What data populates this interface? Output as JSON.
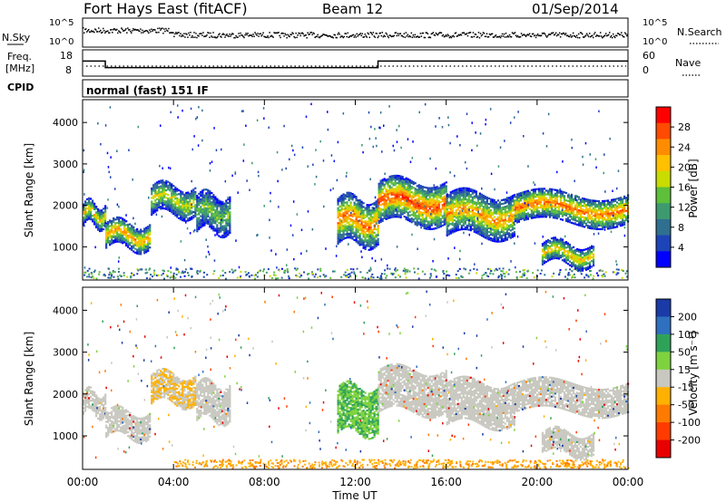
{
  "header": {
    "station": "Fort Hays East (fitACF)",
    "beam": "Beam 12",
    "date": "01/Sep/2014"
  },
  "strips": {
    "nsky_label": "N.Sky",
    "nsearch_label": "N.Search",
    "noise_ticks": [
      "10^5",
      "10^0"
    ],
    "freq_label_line1": "Freq.",
    "freq_label_line2": "[MHz]",
    "freq_ticks": [
      "18",
      "8"
    ],
    "nave_label": "Nave",
    "nave_ticks": [
      "60",
      "0"
    ],
    "cpid_label": "CPID",
    "cpid_text": "normal (fast) 151 IF"
  },
  "time_axis": {
    "label": "Time UT",
    "ticks": [
      "00:00",
      "04:00",
      "08:00",
      "12:00",
      "16:00",
      "20:00",
      "00:00"
    ]
  },
  "chart_data": [
    {
      "type": "heatmap",
      "panel": "power",
      "xlabel": "Time UT",
      "ylabel": "Slant Range [km]",
      "xlim_hours": [
        0,
        24
      ],
      "ylim": [
        200,
        4550
      ],
      "yticks": [
        "4000",
        "3000",
        "2000",
        "1000"
      ],
      "colorbar": {
        "label": "Power [dB]",
        "ticks": [
          "28",
          "24",
          "20",
          "16",
          "12",
          "8",
          "4"
        ],
        "colors": [
          "#ff0000",
          "#ff4a00",
          "#ff8c00",
          "#ffc000",
          "#c8dc00",
          "#5dbf3a",
          "#3d9a6e",
          "#2f6f8f",
          "#1d43b8",
          "#0000ff"
        ]
      },
      "echo_bands": [
        {
          "start_h": 0.0,
          "end_h": 1.0,
          "range_km": [
            1550,
            2050
          ],
          "peak_db": 22
        },
        {
          "start_h": 1.0,
          "end_h": 3.0,
          "range_km": [
            1000,
            1600
          ],
          "peak_db": 24
        },
        {
          "start_h": 3.0,
          "end_h": 5.0,
          "range_km": [
            1800,
            2500
          ],
          "peak_db": 20
        },
        {
          "start_h": 5.0,
          "end_h": 6.5,
          "range_km": [
            1400,
            2300
          ],
          "peak_db": 16
        },
        {
          "start_h": 11.2,
          "end_h": 13.0,
          "range_km": [
            1100,
            2200
          ],
          "peak_db": 26
        },
        {
          "start_h": 13.0,
          "end_h": 16.0,
          "range_km": [
            1600,
            2600
          ],
          "peak_db": 28
        },
        {
          "start_h": 16.0,
          "end_h": 19.0,
          "range_km": [
            1300,
            2300
          ],
          "peak_db": 24
        },
        {
          "start_h": 19.0,
          "end_h": 24.0,
          "range_km": [
            1600,
            2300
          ],
          "peak_db": 26
        },
        {
          "start_h": 20.2,
          "end_h": 22.5,
          "range_km": [
            600,
            1100
          ],
          "peak_db": 22
        }
      ]
    },
    {
      "type": "heatmap",
      "panel": "velocity",
      "xlabel": "Time UT",
      "ylabel": "Slant Range [km]",
      "xlim_hours": [
        0,
        24
      ],
      "ylim": [
        200,
        4550
      ],
      "yticks": [
        "4000",
        "3000",
        "2000",
        "1000"
      ],
      "colorbar": {
        "label": "Velocity [m s⁻¹]",
        "ticks": [
          "200",
          "100",
          "50",
          "15",
          "-15",
          "-50",
          "-100",
          "-200"
        ],
        "colors": [
          "#1a3aa8",
          "#2f6fbf",
          "#2fa25a",
          "#7ed23e",
          "#c8c8c0",
          "#ffb000",
          "#ff7a00",
          "#ff3b00",
          "#e80000"
        ]
      }
    }
  ]
}
